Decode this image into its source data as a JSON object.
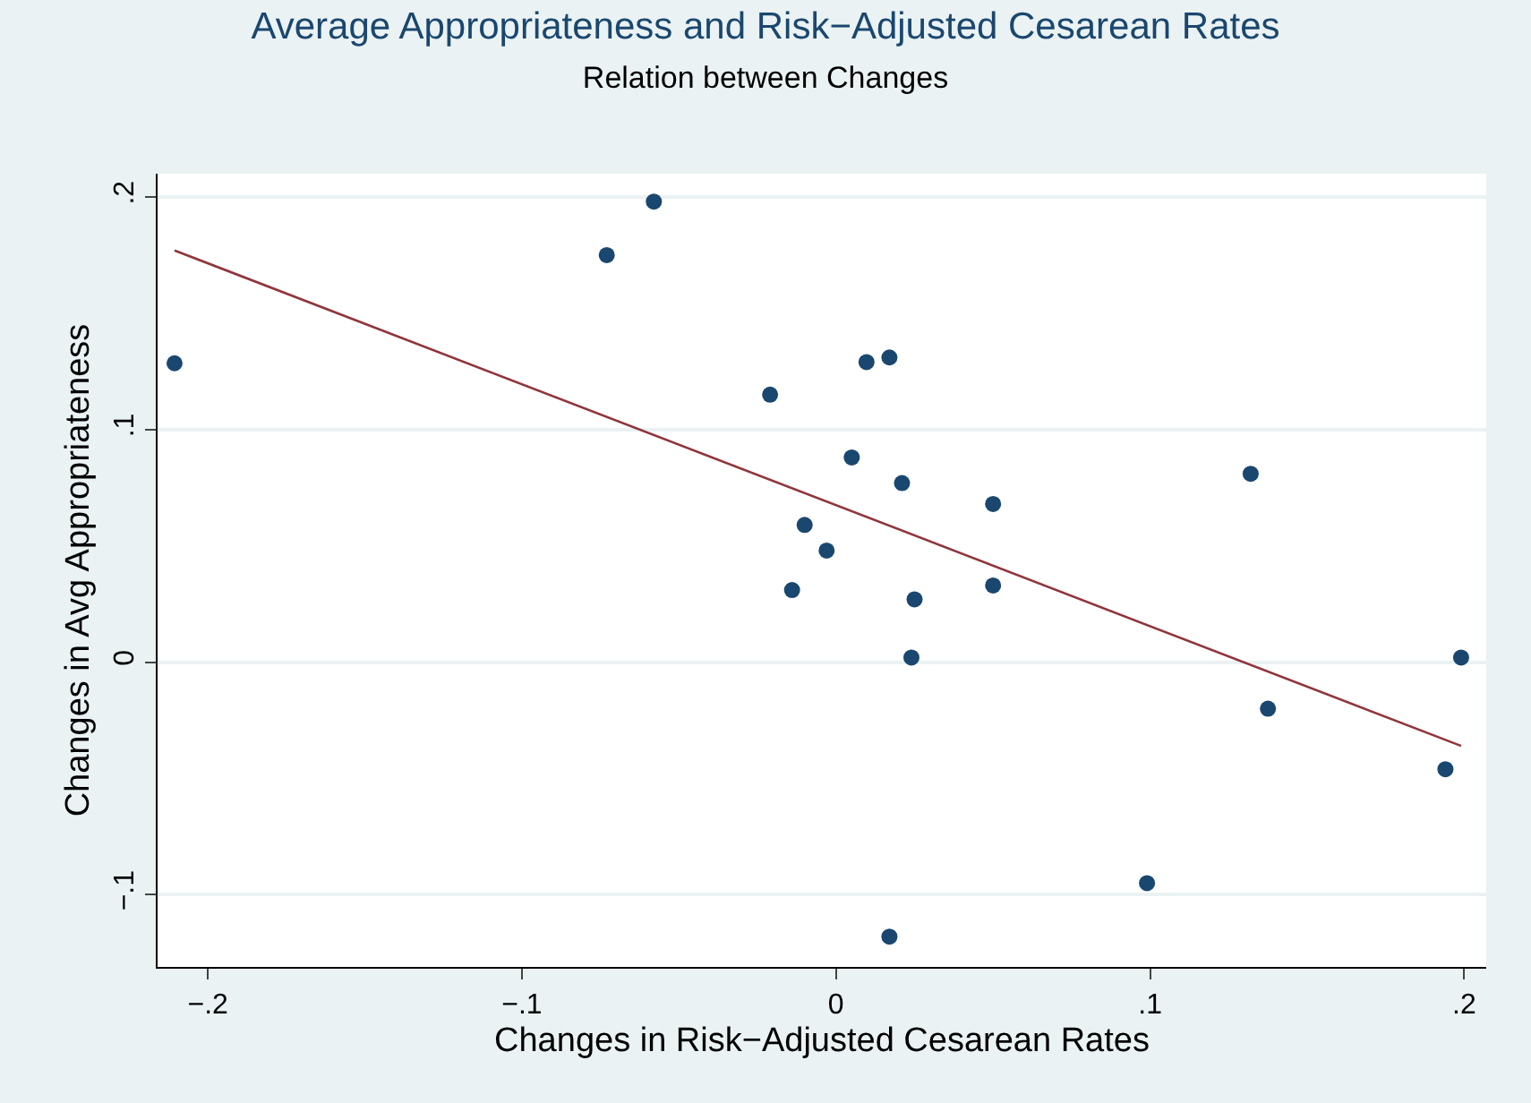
{
  "chart_data": {
    "type": "scatter",
    "title": "Average Appropriateness and Risk−Adjusted Cesarean Rates",
    "subtitle": "Relation between Changes",
    "xlabel": "Changes in Risk−Adjusted Cesarean Rates",
    "ylabel": "Changes in Avg Appropriateness",
    "x": [
      -0.2106,
      -0.073,
      -0.058,
      -0.021,
      0.0097,
      0.017,
      0.005,
      0.021,
      -0.01,
      -0.003,
      -0.014,
      0.025,
      0.024,
      0.05,
      0.05,
      0.132,
      0.1375,
      0.199,
      0.194,
      0.099,
      0.017
    ],
    "series": [
      {
        "color": "#1a476f",
        "values": [
          0.1285,
          0.175,
          0.198,
          0.115,
          0.129,
          0.131,
          0.088,
          0.077,
          0.059,
          0.048,
          0.031,
          0.027,
          0.002,
          0.068,
          0.033,
          0.081,
          -0.02,
          0.002,
          -0.046,
          -0.095,
          -0.118
        ]
      },
      {
        "type": "line",
        "marker": "none",
        "color": "#90353b",
        "x": [
          -0.2106,
          0.199
        ],
        "values": [
          0.177,
          -0.036
        ]
      }
    ],
    "xlim": [
      -0.216,
      0.207
    ],
    "ylim": [
      -0.131,
      0.21
    ],
    "xticks": [
      {
        "value": -0.2,
        "label": "−.2"
      },
      {
        "value": -0.1,
        "label": "−.1"
      },
      0,
      {
        "value": 0.1,
        "label": ".1"
      },
      {
        "value": 0.2,
        "label": ".2"
      }
    ],
    "yticks": [
      {
        "value": -0.1,
        "label": "−.1"
      },
      0,
      {
        "value": 0.1,
        "label": ".1"
      },
      {
        "value": 0.2,
        "label": ".2"
      }
    ],
    "grid": "y",
    "marker": "circle"
  }
}
